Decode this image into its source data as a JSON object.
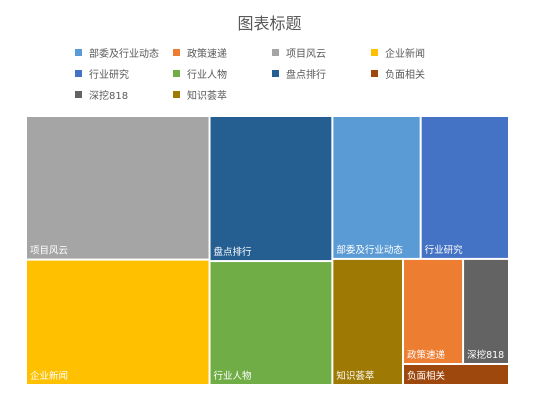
{
  "chart_data": {
    "type": "treemap",
    "title": "图表标题",
    "legend_position": "top",
    "items": [
      {
        "name": "项目风云",
        "value": 71,
        "color": "#a5a5a5"
      },
      {
        "name": "企业新闻",
        "value": 62,
        "color": "#ffc000"
      },
      {
        "name": "盘点排行",
        "value": 48,
        "color": "#255e91"
      },
      {
        "name": "行业人物",
        "value": 41,
        "color": "#70ad47"
      },
      {
        "name": "部委及行业动态",
        "value": 34,
        "color": "#5b9bd5"
      },
      {
        "name": "行业研究",
        "value": 34,
        "color": "#4472c4"
      },
      {
        "name": "知识荟萃",
        "value": 24,
        "color": "#9e7a04"
      },
      {
        "name": "政策速递",
        "value": 17,
        "color": "#ed7d31"
      },
      {
        "name": "深挖818",
        "value": 13,
        "color": "#636363"
      },
      {
        "name": "负面相关",
        "value": 6,
        "color": "#9e480e"
      }
    ],
    "legend": [
      {
        "name": "部委及行业动态",
        "color": "#5b9bd5"
      },
      {
        "name": "政策速递",
        "color": "#ed7d31"
      },
      {
        "name": "项目风云",
        "color": "#a5a5a5"
      },
      {
        "name": "企业新闻",
        "color": "#ffc000"
      },
      {
        "name": "行业研究",
        "color": "#4472c4"
      },
      {
        "name": "行业人物",
        "color": "#70ad47"
      },
      {
        "name": "盘点排行",
        "color": "#255e91"
      },
      {
        "name": "负面相关",
        "color": "#9e480e"
      },
      {
        "name": "深挖818",
        "color": "#636363"
      },
      {
        "name": "知识荟萃",
        "color": "#9e7a04"
      }
    ]
  }
}
